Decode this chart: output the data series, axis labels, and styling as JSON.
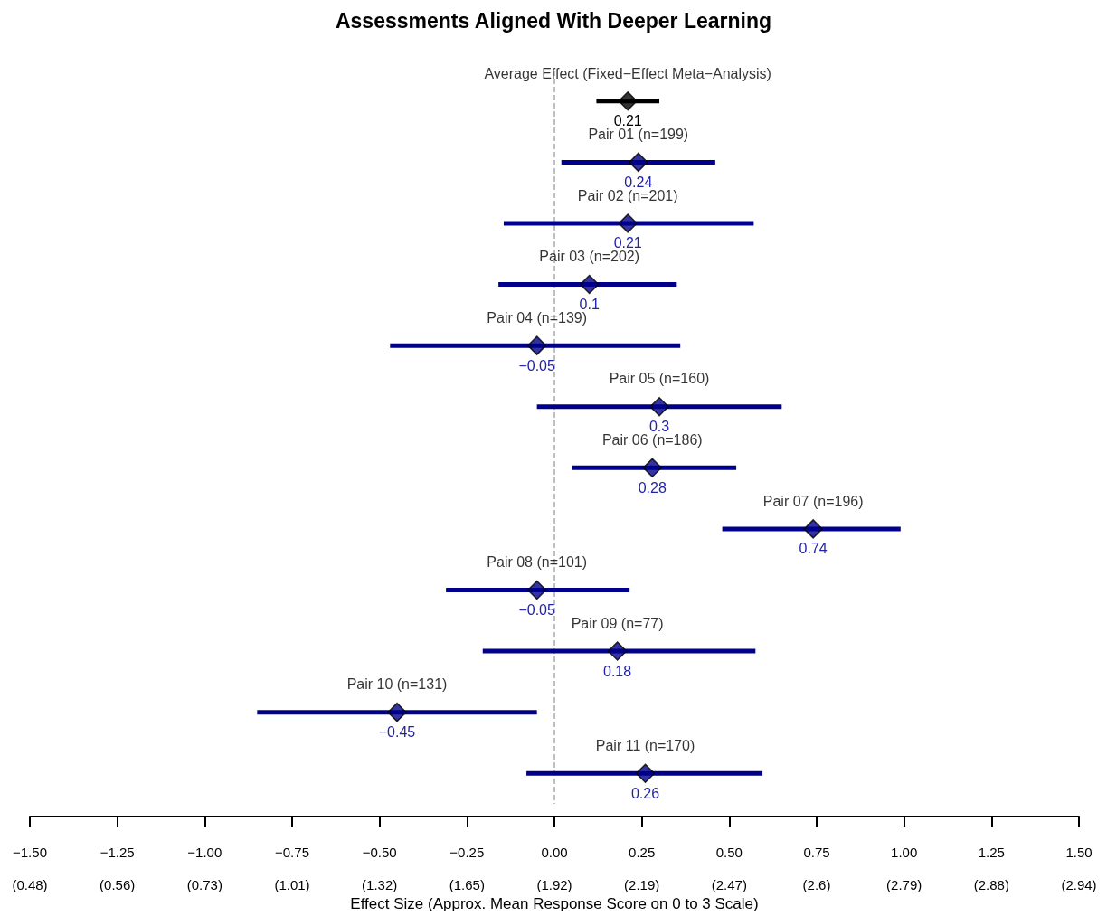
{
  "chart_data": {
    "type": "scatter",
    "orientation": "horizontal",
    "title": "Assessments Aligned With Deeper Learning",
    "xlabel": "Effect Size (Approx. Mean Response Score on 0 to 3 Scale)",
    "categories": [
      "Average Effect (Fixed−Effect Meta−Analysis)",
      "Pair 01 (n=199)",
      "Pair 02 (n=201)",
      "Pair 03 (n=202)",
      "Pair 04 (n=139)",
      "Pair 05 (n=160)",
      "Pair 06 (n=186)",
      "Pair 07 (n=196)",
      "Pair 08 (n=101)",
      "Pair 09 (n=77)",
      "Pair 10 (n=131)",
      "Pair 11 (n=170)"
    ],
    "values": [
      0.21,
      0.24,
      0.21,
      0.1,
      -0.05,
      0.3,
      0.28,
      0.74,
      -0.05,
      0.18,
      -0.45,
      0.26
    ],
    "errors": [
      [
        0.12,
        0.3
      ],
      [
        0.02,
        0.46
      ],
      [
        -0.145,
        0.57
      ],
      [
        -0.16,
        0.35
      ],
      [
        -0.47,
        0.36
      ],
      [
        -0.05,
        0.65
      ],
      [
        0.05,
        0.52
      ],
      [
        0.48,
        0.99
      ],
      [
        -0.31,
        0.215
      ],
      [
        -0.205,
        0.575
      ],
      [
        -0.85,
        -0.05
      ],
      [
        -0.08,
        0.595
      ]
    ],
    "value_labels": [
      "0.21",
      "0.24",
      "0.21",
      "0.1",
      "−0.05",
      "0.3",
      "0.28",
      "0.74",
      "−0.05",
      "0.18",
      "−0.45",
      "0.26"
    ],
    "colors": [
      "#000000",
      "#00008b",
      "#00008b",
      "#00008b",
      "#00008b",
      "#00008b",
      "#00008b",
      "#00008b",
      "#00008b",
      "#00008b",
      "#00008b",
      "#00008b"
    ],
    "marker": "diamond",
    "xlim": [
      -1.5,
      1.5
    ],
    "xticks": [
      {
        "value": -1.5,
        "label": "−1.50"
      },
      {
        "value": -1.25,
        "label": "−1.25"
      },
      {
        "value": -1.0,
        "label": "−1.00"
      },
      {
        "value": -0.75,
        "label": "−0.75"
      },
      {
        "value": -0.5,
        "label": "−0.50"
      },
      {
        "value": -0.25,
        "label": "−0.25"
      },
      {
        "value": 0,
        "label": "0.00"
      },
      {
        "value": 0.25,
        "label": "0.25"
      },
      {
        "value": 0.5,
        "label": "0.50"
      },
      {
        "value": 0.75,
        "label": "0.75"
      },
      {
        "value": 1.0,
        "label": "1.00"
      },
      {
        "value": 1.25,
        "label": "1.25"
      },
      {
        "value": 1.5,
        "label": "1.50"
      }
    ],
    "annotations": [
      "(0.48)",
      "(0.56)",
      "(0.73)",
      "(1.01)",
      "(1.32)",
      "(1.65)",
      "(1.92)",
      "(2.19)",
      "(2.47)",
      "(2.6)",
      "(2.79)",
      "(2.88)",
      "(2.94)"
    ],
    "ref_lines": [
      {
        "axis": "x",
        "value": 0,
        "color": "#aaaaaa",
        "line_style": "dashed"
      }
    ]
  }
}
